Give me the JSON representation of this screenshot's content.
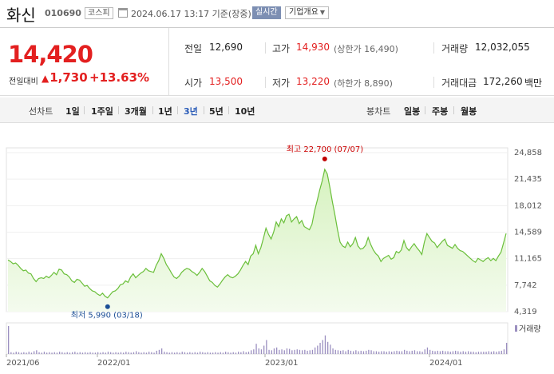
{
  "header": {
    "stock_name": "화신",
    "stock_code": "010690",
    "market": "코스피",
    "timestamp": "2024.06.17 13:17 기준(장중)",
    "live_label": "실시간",
    "company_overview_label": "기업개요"
  },
  "price": {
    "current": "14,420",
    "change_label": "전일대비",
    "change_value": "1,730",
    "change_pct": "+13.63%",
    "up_color": "#e32020"
  },
  "stats": {
    "prev_close_label": "전일",
    "prev_close": "12,690",
    "high_label": "고가",
    "high": "14,930",
    "upper_limit": "(상한가 16,490)",
    "volume_label": "거래량",
    "volume": "12,032,055",
    "open_label": "시가",
    "open": "13,500",
    "low_label": "저가",
    "low": "13,220",
    "lower_limit": "(하한가 8,890)",
    "trade_value_label": "거래대금",
    "trade_value": "172,260",
    "trade_value_unit": "백만"
  },
  "toolbar": {
    "line_chart_label": "선차트",
    "periods": [
      "1일",
      "1주일",
      "3개월",
      "1년",
      "3년",
      "5년",
      "10년"
    ],
    "active_period": "3년",
    "candle_chart_label": "봉차트",
    "candle_periods": [
      "일봉",
      "주봉",
      "월봉"
    ]
  },
  "chart_data": {
    "type": "area",
    "y_ticks": [
      "24,858",
      "21,435",
      "18,012",
      "14,589",
      "11,165",
      "7,742",
      "4,319"
    ],
    "ylim": [
      4319,
      24858
    ],
    "x_ticks": [
      "2021/06",
      "2022/01",
      "2023/01",
      "2024/01"
    ],
    "high_annotation": "최고 22,700 (07/07)",
    "low_annotation": "최저 5,990 (03/18)",
    "volume_legend": "거래량",
    "line_color": "#6abf3a",
    "fill_color": "#d6f2bf",
    "high_color": "#c00000",
    "low_color": "#1c4f96",
    "series": [
      11000,
      10800,
      10500,
      10600,
      10300,
      9900,
      9600,
      9700,
      9300,
      9200,
      8600,
      8200,
      8600,
      8700,
      8600,
      8900,
      8700,
      9000,
      9400,
      9100,
      9800,
      9700,
      9200,
      9100,
      8800,
      8300,
      8100,
      8500,
      8400,
      8000,
      7600,
      7700,
      7300,
      7000,
      6900,
      6600,
      6400,
      6700,
      6300,
      6100,
      6500,
      6900,
      7000,
      7300,
      7800,
      7900,
      8300,
      8100,
      8800,
      9200,
      8700,
      9000,
      9300,
      9500,
      9900,
      9600,
      9500,
      9400,
      10300,
      10900,
      11800,
      11200,
      10400,
      9900,
      9300,
      8800,
      8600,
      8900,
      9400,
      9700,
      9900,
      9800,
      9500,
      9300,
      9000,
      9400,
      9900,
      9500,
      8900,
      8300,
      8100,
      7700,
      7500,
      7900,
      8400,
      8800,
      9100,
      8800,
      8700,
      8900,
      9200,
      9700,
      10300,
      10800,
      10400,
      11500,
      11800,
      12900,
      11800,
      12600,
      13800,
      15100,
      14300,
      13700,
      14600,
      15900,
      15300,
      16300,
      15800,
      16700,
      16900,
      15900,
      16300,
      16600,
      15700,
      16100,
      15300,
      15100,
      14900,
      15600,
      17300,
      18600,
      20000,
      21200,
      22700,
      22100,
      20400,
      18500,
      16800,
      14900,
      13300,
      12800,
      12600,
      13300,
      12700,
      13100,
      13900,
      12800,
      12400,
      12500,
      12900,
      13900,
      13000,
      12300,
      11800,
      11500,
      10800,
      11200,
      11400,
      11600,
      11100,
      11300,
      12100,
      11900,
      12300,
      13500,
      12600,
      12200,
      12700,
      13100,
      12600,
      12200,
      11700,
      13300,
      14400,
      13900,
      13400,
      13200,
      12600,
      13000,
      13400,
      13700,
      12900,
      12700,
      12500,
      13000,
      12500,
      12200,
      12100,
      11800,
      11500,
      11200,
      10900,
      10700,
      11200,
      11000,
      10800,
      11100,
      11300,
      10900,
      11200,
      10900,
      11500,
      12000,
      13200,
      14420
    ],
    "volume": [
      60,
      4,
      3,
      5,
      4,
      3,
      4,
      3,
      5,
      3,
      6,
      8,
      4,
      3,
      5,
      3,
      4,
      3,
      4,
      3,
      5,
      4,
      3,
      4,
      3,
      4,
      5,
      3,
      4,
      3,
      4,
      3,
      4,
      3,
      3,
      4,
      3,
      4,
      3,
      5,
      4,
      3,
      4,
      3,
      4,
      3,
      5,
      4,
      3,
      4,
      6,
      4,
      3,
      4,
      3,
      5,
      4,
      3,
      7,
      9,
      12,
      5,
      4,
      3,
      4,
      3,
      4,
      3,
      5,
      4,
      3,
      4,
      3,
      4,
      3,
      5,
      4,
      3,
      4,
      3,
      3,
      4,
      3,
      4,
      3,
      5,
      4,
      3,
      4,
      3,
      5,
      4,
      6,
      4,
      5,
      8,
      10,
      22,
      12,
      10,
      18,
      30,
      9,
      8,
      12,
      14,
      9,
      10,
      8,
      12,
      11,
      8,
      9,
      10,
      9,
      8,
      9,
      7,
      8,
      9,
      14,
      18,
      24,
      30,
      40,
      26,
      20,
      12,
      9,
      8,
      7,
      8,
      6,
      9,
      7,
      6,
      8,
      6,
      7,
      6,
      7,
      9,
      8,
      6,
      6,
      5,
      6,
      6,
      5,
      6,
      5,
      6,
      7,
      6,
      6,
      9,
      7,
      6,
      7,
      8,
      6,
      6,
      5,
      10,
      14,
      9,
      7,
      6,
      7,
      6,
      7,
      6,
      6,
      5,
      6,
      7,
      6,
      5,
      6,
      5,
      6,
      5,
      5,
      4,
      5,
      5,
      5,
      5,
      6,
      5,
      6,
      5,
      6,
      7,
      10,
      24
    ]
  }
}
